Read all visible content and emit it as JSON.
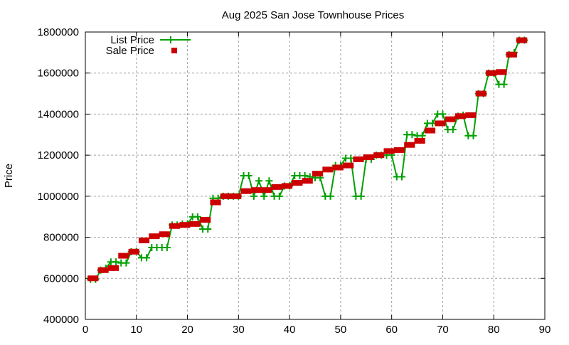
{
  "chart_data": {
    "type": "line",
    "title": "Aug 2025 San Jose Townhouse Prices",
    "xlabel": "",
    "ylabel": "Price",
    "xlim": [
      0,
      90
    ],
    "ylim": [
      400000,
      1800000
    ],
    "xticks": [
      0,
      10,
      20,
      30,
      40,
      50,
      60,
      70,
      80,
      90
    ],
    "yticks": [
      400000,
      600000,
      800000,
      1000000,
      1200000,
      1400000,
      1600000,
      1800000
    ],
    "grid": true,
    "legend_position": "top-left",
    "x": [
      1,
      2,
      3,
      4,
      5,
      6,
      7,
      8,
      9,
      10,
      11,
      12,
      13,
      14,
      15,
      16,
      17,
      18,
      19,
      20,
      21,
      22,
      23,
      24,
      25,
      26,
      27,
      28,
      29,
      30,
      31,
      32,
      33,
      34,
      35,
      36,
      37,
      38,
      39,
      40,
      41,
      42,
      43,
      44,
      45,
      46,
      47,
      48,
      49,
      50,
      51,
      52,
      53,
      54,
      55,
      56,
      57,
      58,
      59,
      60,
      61,
      62,
      63,
      64,
      65,
      66,
      67,
      68,
      69,
      70,
      71,
      72,
      73,
      74,
      75,
      76,
      77,
      78,
      79,
      80,
      81,
      82,
      83,
      84,
      85,
      86
    ],
    "series": [
      {
        "name": "List Price",
        "color": "#00a000",
        "style": "linespoints",
        "values": [
          595000,
          595000,
          640000,
          650000,
          680000,
          680000,
          675000,
          675000,
          730000,
          730000,
          700000,
          700000,
          750000,
          750000,
          750000,
          750000,
          860000,
          860000,
          865000,
          865000,
          900000,
          900000,
          840000,
          840000,
          990000,
          990000,
          1000000,
          1000000,
          1000000,
          1000000,
          1100000,
          1100000,
          1000000,
          1075000,
          1000000,
          1075000,
          1000000,
          1000000,
          1050000,
          1050000,
          1100000,
          1100000,
          1100000,
          1095000,
          1090000,
          1090000,
          1000000,
          1000000,
          1150000,
          1150000,
          1185000,
          1185000,
          1000000,
          1000000,
          1180000,
          1180000,
          1200000,
          1200000,
          1200000,
          1200000,
          1095000,
          1095000,
          1300000,
          1300000,
          1295000,
          1295000,
          1355000,
          1355000,
          1400000,
          1400000,
          1325000,
          1325000,
          1390000,
          1395000,
          1295000,
          1295000,
          1500000,
          1500000,
          1600000,
          1600000,
          1545000,
          1545000,
          1690000,
          1700000,
          1760000,
          1760000
        ]
      },
      {
        "name": "Sale Price",
        "color": "#cc0000",
        "style": "points",
        "values": [
          600000,
          600000,
          640000,
          640000,
          650000,
          650000,
          710000,
          710000,
          730000,
          730000,
          785000,
          785000,
          805000,
          805000,
          815000,
          815000,
          855000,
          855000,
          860000,
          860000,
          865000,
          865000,
          885000,
          885000,
          970000,
          970000,
          1000000,
          1000000,
          1000000,
          1000000,
          1025000,
          1025000,
          1030000,
          1030000,
          1030000,
          1030000,
          1045000,
          1045000,
          1050000,
          1050000,
          1065000,
          1065000,
          1075000,
          1075000,
          1110000,
          1110000,
          1130000,
          1130000,
          1140000,
          1140000,
          1150000,
          1150000,
          1180000,
          1180000,
          1190000,
          1190000,
          1200000,
          1200000,
          1220000,
          1220000,
          1225000,
          1225000,
          1250000,
          1250000,
          1270000,
          1270000,
          1320000,
          1320000,
          1355000,
          1355000,
          1375000,
          1375000,
          1390000,
          1390000,
          1395000,
          1395000,
          1500000,
          1500000,
          1600000,
          1600000,
          1605000,
          1605000,
          1690000,
          1690000,
          1760000,
          1760000
        ]
      }
    ]
  }
}
